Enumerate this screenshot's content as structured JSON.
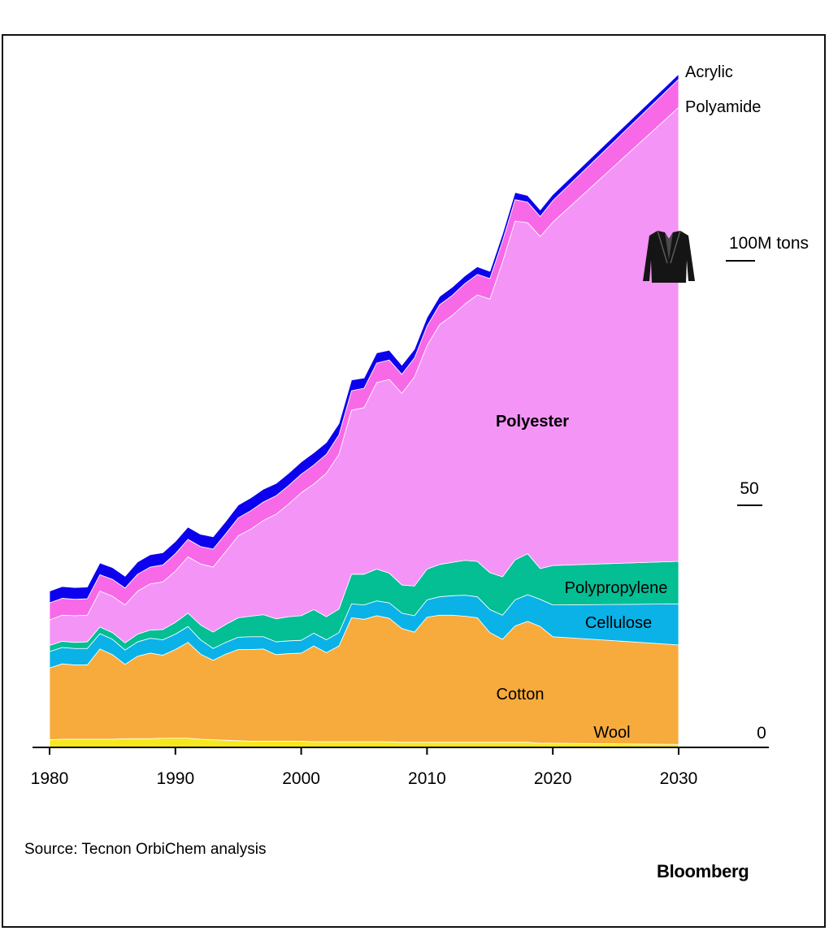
{
  "chart_data": {
    "type": "area",
    "stacked": true,
    "title": "",
    "xlabel": "",
    "ylabel": "",
    "unit_label": "100M tons",
    "x": [
      1980,
      1981,
      1982,
      1983,
      1984,
      1985,
      1986,
      1987,
      1988,
      1989,
      1990,
      1991,
      1992,
      1993,
      1994,
      1995,
      1996,
      1997,
      1998,
      1999,
      2000,
      2001,
      2002,
      2003,
      2004,
      2005,
      2006,
      2007,
      2008,
      2009,
      2010,
      2011,
      2012,
      2013,
      2014,
      2015,
      2016,
      2017,
      2018,
      2019,
      2020,
      2030
    ],
    "xlim": [
      1980,
      2030
    ],
    "xticks": [
      "1980",
      "1990",
      "2000",
      "2010",
      "2020",
      "2030"
    ],
    "ylim": [
      0,
      130
    ],
    "yticks": [
      "0",
      "50",
      "100M tons"
    ],
    "series": [
      {
        "name": "Wool",
        "color": "#f7e81e",
        "values": [
          1.5,
          1.6,
          1.6,
          1.6,
          1.6,
          1.6,
          1.7,
          1.7,
          1.7,
          1.8,
          1.8,
          1.8,
          1.6,
          1.5,
          1.4,
          1.3,
          1.2,
          1.2,
          1.2,
          1.2,
          1.2,
          1.1,
          1.1,
          1.1,
          1.1,
          1.1,
          1.1,
          1.1,
          1.0,
          1.0,
          1.0,
          1.0,
          1.0,
          1.0,
          1.0,
          1.0,
          1.0,
          1.0,
          1.0,
          0.8,
          0.8,
          0.6
        ]
      },
      {
        "name": "Cotton",
        "color": "#f7ab3c",
        "values": [
          14.0,
          14.7,
          14.5,
          14.5,
          17.6,
          16.5,
          14.5,
          16.1,
          16.7,
          16.2,
          17.3,
          18.7,
          16.6,
          15.5,
          16.8,
          17.8,
          17.9,
          18.0,
          16.9,
          17.1,
          17.2,
          18.7,
          17.4,
          18.7,
          24.2,
          23.9,
          24.6,
          24.1,
          22.2,
          21.5,
          24.4,
          24.8,
          24.8,
          24.6,
          24.3,
          21.4,
          20.1,
          22.7,
          23.6,
          22.8,
          20.8,
          19.4
        ]
      },
      {
        "name": "Cellulose",
        "color": "#0ab2e8",
        "values": [
          3.2,
          3.2,
          3.2,
          3.2,
          3.0,
          3.0,
          2.8,
          2.8,
          2.9,
          3.0,
          3.0,
          3.1,
          2.8,
          2.3,
          2.3,
          2.4,
          2.5,
          2.4,
          2.5,
          2.5,
          2.5,
          2.5,
          2.5,
          2.6,
          2.7,
          2.8,
          2.9,
          3.0,
          3.0,
          3.2,
          3.4,
          3.6,
          3.8,
          4.1,
          4.1,
          4.5,
          4.7,
          5.1,
          5.2,
          5.3,
          6.2,
          8.0
        ]
      },
      {
        "name": "Polypropylene",
        "color": "#04be94",
        "values": [
          1.2,
          1.2,
          1.2,
          1.3,
          1.3,
          1.3,
          1.4,
          1.5,
          1.6,
          2.0,
          2.3,
          2.6,
          2.9,
          3.2,
          3.5,
          3.8,
          4.0,
          4.3,
          4.5,
          4.7,
          4.8,
          4.6,
          4.5,
          4.6,
          5.8,
          6.0,
          6.2,
          5.8,
          5.5,
          5.8,
          6.0,
          6.3,
          6.5,
          6.8,
          6.9,
          7.2,
          7.5,
          7.8,
          8.0,
          6.0,
          7.7,
          8.3
        ]
      },
      {
        "name": "Polyester",
        "color": "#f494f6",
        "values": [
          5.0,
          5.1,
          5.2,
          5.2,
          7.0,
          7.1,
          7.4,
          8.4,
          9.0,
          9.3,
          10.0,
          11.0,
          11.9,
          12.7,
          14.2,
          16.0,
          17.0,
          18.4,
          20.4,
          22.0,
          24.0,
          24.5,
          28.0,
          30.2,
          32.0,
          32.5,
          36.4,
          37.8,
          37.4,
          40.8,
          43.6,
          46.8,
          48.2,
          50.0,
          52.0,
          53.4,
          61.4,
          66.1,
          64.6,
          64.8,
          67.0,
          88.6
        ]
      },
      {
        "name": "Polyamide",
        "color": "#f769e7",
        "values": [
          3.3,
          3.3,
          3.2,
          3.2,
          3.2,
          3.3,
          3.3,
          3.3,
          3.3,
          3.3,
          3.4,
          3.4,
          3.4,
          3.5,
          3.5,
          3.5,
          3.6,
          3.6,
          3.6,
          3.6,
          3.6,
          3.7,
          3.7,
          3.8,
          3.8,
          3.8,
          3.8,
          3.8,
          3.7,
          3.7,
          3.8,
          3.9,
          3.9,
          4.0,
          4.0,
          4.0,
          4.1,
          4.2,
          4.0,
          3.9,
          4.2,
          5.5
        ]
      },
      {
        "name": "Acrylic",
        "color": "#0c00ee",
        "values": [
          2.3,
          2.3,
          2.3,
          2.3,
          2.3,
          2.3,
          2.3,
          2.4,
          2.4,
          2.4,
          2.4,
          2.4,
          2.4,
          2.4,
          2.4,
          2.5,
          2.5,
          2.5,
          2.4,
          2.4,
          2.4,
          2.4,
          2.3,
          2.2,
          2.1,
          2.0,
          2.0,
          1.9,
          1.8,
          1.7,
          1.7,
          1.6,
          1.6,
          1.5,
          1.5,
          1.4,
          1.4,
          1.4,
          1.3,
          1.3,
          1.2,
          1.0
        ]
      }
    ],
    "series_labels": [
      "Wool",
      "Cotton",
      "Cellulose",
      "Polypropylene",
      "Polyester",
      "Polyamide",
      "Acrylic"
    ],
    "legend": "inline labels",
    "grid": false
  },
  "icon": "jacket-icon",
  "footer": {
    "source": "Source: Tecnon OrbiChem analysis",
    "brand": "Bloomberg"
  }
}
